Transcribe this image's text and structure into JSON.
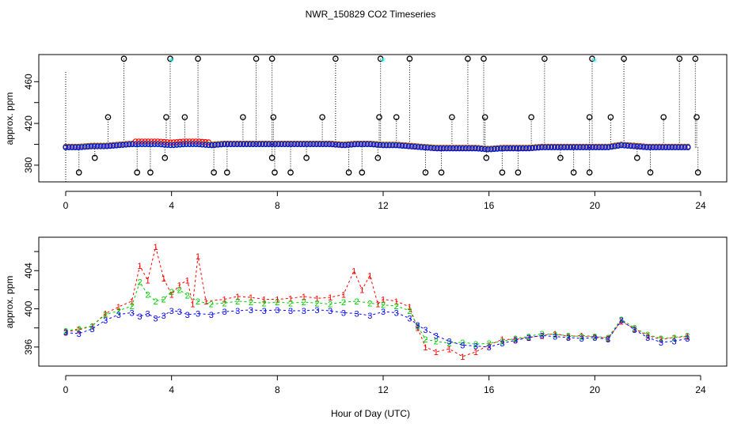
{
  "chart_data": {
    "type": "scatter",
    "title": "NWR_150829  CO2 Timeseries",
    "xlabel": "Hour of Day (UTC)",
    "colors": {
      "s1": "#ff0000",
      "s2": "#00cc00",
      "s3": "#0000ff",
      "flag": "#000000",
      "cyan": "#00ffff"
    },
    "panels": [
      {
        "ylabel": "approx. ppm",
        "xlim": [
          0,
          24
        ],
        "ylim": [
          364,
          486
        ],
        "xticks": [
          "0",
          "4",
          "8",
          "12",
          "16",
          "20",
          "24"
        ],
        "yticks": [
          "380",
          "420",
          "460"
        ],
        "ylevels": [
          360,
          380,
          400,
          420,
          440,
          460
        ],
        "baseline": [
          [
            0.0,
            397
          ],
          [
            0.5,
            397
          ],
          [
            1.0,
            398
          ],
          [
            1.5,
            398
          ],
          [
            2.0,
            399
          ],
          [
            2.5,
            400
          ],
          [
            3.0,
            400
          ],
          [
            3.5,
            400
          ],
          [
            4.0,
            399
          ],
          [
            4.5,
            400
          ],
          [
            5.0,
            400
          ],
          [
            5.5,
            399
          ],
          [
            6.0,
            400
          ],
          [
            6.5,
            400
          ],
          [
            7.0,
            400
          ],
          [
            7.5,
            400
          ],
          [
            8.0,
            400
          ],
          [
            8.5,
            400
          ],
          [
            9.0,
            400
          ],
          [
            9.5,
            400
          ],
          [
            10.0,
            400
          ],
          [
            10.5,
            399
          ],
          [
            11.0,
            400
          ],
          [
            11.5,
            400
          ],
          [
            12.0,
            399
          ],
          [
            12.5,
            399
          ],
          [
            13.0,
            398
          ],
          [
            13.5,
            397
          ],
          [
            14.0,
            396
          ],
          [
            14.5,
            396
          ],
          [
            15.0,
            396
          ],
          [
            15.5,
            396
          ],
          [
            16.0,
            395
          ],
          [
            16.5,
            396
          ],
          [
            17.0,
            396
          ],
          [
            17.5,
            396
          ],
          [
            18.0,
            397
          ],
          [
            18.5,
            397
          ],
          [
            19.0,
            397
          ],
          [
            19.5,
            397
          ],
          [
            20.0,
            397
          ],
          [
            20.5,
            397
          ],
          [
            21.0,
            399
          ],
          [
            21.5,
            398
          ],
          [
            22.0,
            397
          ],
          [
            22.5,
            397
          ],
          [
            23.0,
            397
          ],
          [
            23.5,
            397
          ]
        ],
        "high_spikes": [
          2.2,
          3.95,
          5.0,
          7.2,
          7.8,
          10.2,
          11.9,
          13.0,
          15.2,
          15.8,
          18.1,
          19.9,
          21.1,
          23.2,
          23.8
        ],
        "mid_spikes": [
          1.6,
          3.8,
          4.5,
          6.7,
          7.85,
          9.7,
          11.85,
          12.5,
          14.6,
          15.85,
          17.6,
          19.8,
          20.6,
          22.6,
          23.85
        ],
        "low_spikes": [
          0.5,
          1.1,
          2.7,
          3.2,
          3.75,
          5.6,
          6.1,
          7.8,
          7.9,
          8.5,
          9.1,
          10.7,
          11.2,
          11.8,
          13.6,
          14.2,
          15.9,
          16.5,
          17.1,
          18.7,
          19.2,
          19.8,
          21.6,
          22.1,
          23.9
        ],
        "cyan_marks": [
          4.0,
          12.0,
          20.0
        ],
        "mid_value": 426,
        "high_value": 482,
        "low_value": 373,
        "low2_value": 387
      },
      {
        "ylabel": "approx. ppm",
        "xlim": [
          0,
          24
        ],
        "ylim": [
          394,
          407.5
        ],
        "xticks": [
          "0",
          "4",
          "8",
          "12",
          "16",
          "20",
          "24"
        ],
        "yticks": [
          "396",
          "400",
          "404"
        ],
        "ylevels": [
          396,
          398,
          400,
          402,
          404,
          406
        ],
        "series": [
          {
            "name": "1",
            "symbol": "1",
            "values": [
              [
                0.0,
                397.6
              ],
              [
                0.5,
                397.8
              ],
              [
                1.0,
                398.2
              ],
              [
                1.5,
                399.5
              ],
              [
                2.0,
                400.2
              ],
              [
                2.5,
                400.8
              ],
              [
                2.8,
                404.5
              ],
              [
                3.1,
                403.0
              ],
              [
                3.4,
                406.5
              ],
              [
                3.7,
                403.2
              ],
              [
                4.0,
                401.5
              ],
              [
                4.3,
                402.5
              ],
              [
                4.6,
                403.0
              ],
              [
                4.8,
                400.5
              ],
              [
                5.0,
                405.5
              ],
              [
                5.3,
                400.8
              ],
              [
                6.0,
                401.0
              ],
              [
                6.5,
                401.3
              ],
              [
                7.0,
                401.2
              ],
              [
                7.5,
                401.0
              ],
              [
                8.0,
                401.0
              ],
              [
                8.5,
                401.1
              ],
              [
                9.0,
                401.3
              ],
              [
                9.5,
                401.1
              ],
              [
                10.0,
                401.2
              ],
              [
                10.5,
                401.5
              ],
              [
                10.9,
                404.0
              ],
              [
                11.2,
                402.0
              ],
              [
                11.5,
                403.5
              ],
              [
                11.8,
                400.5
              ],
              [
                12.0,
                401.0
              ],
              [
                12.5,
                400.8
              ],
              [
                13.0,
                400.2
              ],
              [
                13.3,
                398.0
              ],
              [
                13.6,
                396.0
              ],
              [
                14.0,
                395.5
              ],
              [
                14.5,
                395.8
              ],
              [
                15.0,
                395.0
              ],
              [
                15.5,
                395.5
              ],
              [
                16.0,
                396.2
              ],
              [
                16.5,
                396.8
              ],
              [
                17.0,
                396.8
              ],
              [
                17.5,
                397.0
              ],
              [
                18.0,
                397.2
              ],
              [
                18.5,
                397.4
              ],
              [
                19.0,
                397.1
              ],
              [
                19.5,
                397.2
              ],
              [
                20.0,
                397.1
              ],
              [
                20.5,
                396.9
              ],
              [
                21.0,
                398.7
              ],
              [
                21.5,
                397.9
              ],
              [
                22.0,
                397.2
              ],
              [
                22.5,
                396.8
              ],
              [
                23.0,
                397.0
              ],
              [
                23.5,
                397.1
              ]
            ]
          },
          {
            "name": "2",
            "symbol": "2",
            "values": [
              [
                0.0,
                397.7
              ],
              [
                0.5,
                397.9
              ],
              [
                1.0,
                398.2
              ],
              [
                1.5,
                399.4
              ],
              [
                2.0,
                399.8
              ],
              [
                2.5,
                400.3
              ],
              [
                2.8,
                402.8
              ],
              [
                3.1,
                401.5
              ],
              [
                3.4,
                400.8
              ],
              [
                3.7,
                401.0
              ],
              [
                4.0,
                401.8
              ],
              [
                4.3,
                402.0
              ],
              [
                4.6,
                401.4
              ],
              [
                5.0,
                400.8
              ],
              [
                5.5,
                400.5
              ],
              [
                6.0,
                400.6
              ],
              [
                6.5,
                400.8
              ],
              [
                7.0,
                400.7
              ],
              [
                7.5,
                400.6
              ],
              [
                8.0,
                400.7
              ],
              [
                8.5,
                400.6
              ],
              [
                9.0,
                400.7
              ],
              [
                9.5,
                400.6
              ],
              [
                10.0,
                400.5
              ],
              [
                10.5,
                400.7
              ],
              [
                11.0,
                400.8
              ],
              [
                11.5,
                400.6
              ],
              [
                12.0,
                400.4
              ],
              [
                12.5,
                400.3
              ],
              [
                13.0,
                399.8
              ],
              [
                13.3,
                398.2
              ],
              [
                13.6,
                396.8
              ],
              [
                14.0,
                396.6
              ],
              [
                14.5,
                396.4
              ],
              [
                15.0,
                396.5
              ],
              [
                15.5,
                396.3
              ],
              [
                16.0,
                396.4
              ],
              [
                16.5,
                396.6
              ],
              [
                17.0,
                396.9
              ],
              [
                17.5,
                397.1
              ],
              [
                18.0,
                397.4
              ],
              [
                18.5,
                397.3
              ],
              [
                19.0,
                397.2
              ],
              [
                19.5,
                397.1
              ],
              [
                20.0,
                397.1
              ],
              [
                20.5,
                397.0
              ],
              [
                21.0,
                398.9
              ],
              [
                21.5,
                398.0
              ],
              [
                22.0,
                397.3
              ],
              [
                22.5,
                396.9
              ],
              [
                23.0,
                397.0
              ],
              [
                23.5,
                397.2
              ]
            ]
          },
          {
            "name": "3",
            "symbol": "3",
            "values": [
              [
                0.0,
                397.5
              ],
              [
                0.5,
                397.4
              ],
              [
                1.0,
                397.9
              ],
              [
                1.5,
                398.8
              ],
              [
                2.0,
                399.4
              ],
              [
                2.5,
                399.6
              ],
              [
                2.8,
                399.2
              ],
              [
                3.1,
                399.5
              ],
              [
                3.4,
                399.0
              ],
              [
                3.7,
                399.3
              ],
              [
                4.0,
                399.8
              ],
              [
                4.3,
                399.7
              ],
              [
                4.6,
                399.4
              ],
              [
                5.0,
                399.5
              ],
              [
                5.5,
                399.4
              ],
              [
                6.0,
                399.7
              ],
              [
                6.5,
                399.8
              ],
              [
                7.0,
                399.9
              ],
              [
                7.5,
                399.8
              ],
              [
                8.0,
                399.9
              ],
              [
                8.5,
                399.8
              ],
              [
                9.0,
                399.8
              ],
              [
                9.5,
                399.9
              ],
              [
                10.0,
                399.8
              ],
              [
                10.5,
                399.6
              ],
              [
                11.0,
                399.5
              ],
              [
                11.5,
                399.3
              ],
              [
                12.0,
                399.7
              ],
              [
                12.5,
                399.6
              ],
              [
                13.0,
                399.0
              ],
              [
                13.3,
                398.3
              ],
              [
                13.6,
                397.8
              ],
              [
                14.0,
                397.2
              ],
              [
                14.5,
                396.6
              ],
              [
                15.0,
                396.2
              ],
              [
                15.5,
                396.1
              ],
              [
                16.0,
                396.0
              ],
              [
                16.5,
                396.4
              ],
              [
                17.0,
                396.7
              ],
              [
                17.5,
                397.0
              ],
              [
                18.0,
                397.2
              ],
              [
                18.5,
                397.1
              ],
              [
                19.0,
                397.0
              ],
              [
                19.5,
                396.9
              ],
              [
                20.0,
                397.0
              ],
              [
                20.5,
                396.8
              ],
              [
                21.0,
                398.8
              ],
              [
                21.5,
                397.8
              ],
              [
                22.0,
                397.0
              ],
              [
                22.5,
                396.5
              ],
              [
                23.0,
                396.6
              ],
              [
                23.5,
                396.9
              ]
            ]
          }
        ]
      }
    ]
  }
}
